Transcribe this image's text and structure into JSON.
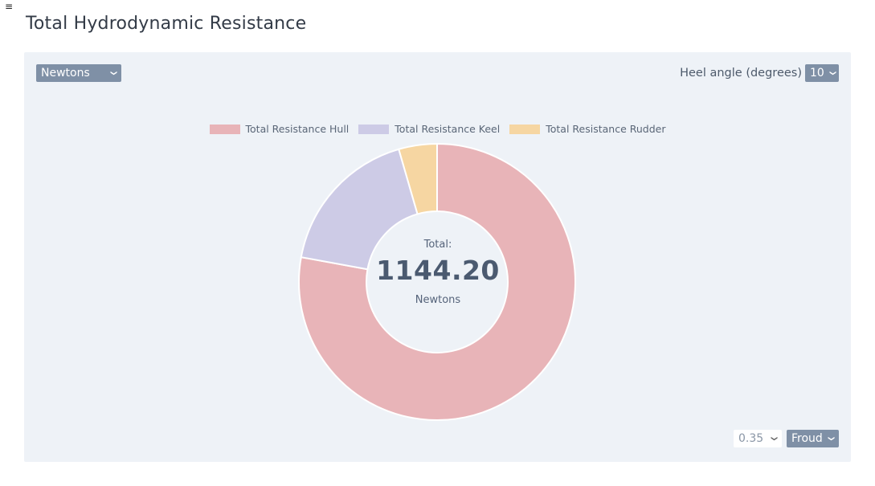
{
  "header": {
    "menu_icon": "hamburger-menu-icon",
    "title": "Total Hydrodynamic Resistance"
  },
  "controls": {
    "units_select": {
      "value": "Newtons",
      "icon": "chevron-down-icon"
    },
    "heel": {
      "label": "Heel angle (degrees)",
      "value": "10",
      "icon": "chevron-down-icon"
    },
    "froude_value_select": {
      "value": "0.35",
      "icon": "chevron-down-icon"
    },
    "froude_select": {
      "value": "Froud",
      "icon": "chevron-down-icon"
    }
  },
  "center": {
    "caption": "Total:",
    "value": "1144.20",
    "unit": "Newtons"
  },
  "colors": {
    "select_bg": "#7f90a6",
    "panel_bg": "#eef2f7",
    "hull": "#e8b4b8",
    "keel": "#cdcbe6",
    "rudder": "#f6d6a2"
  },
  "chart_data": {
    "type": "pie",
    "variant": "doughnut",
    "categories": [
      "Total Resistance Hull",
      "Total Resistance Keel",
      "Total Resistance Rudder"
    ],
    "values": [
      891.0,
      202.0,
      51.2
    ],
    "total": 1144.2,
    "unit": "Newtons",
    "legend": "top-center",
    "series": [
      {
        "name": "Total Resistance Hull",
        "value": 891.0,
        "color": "#e8b4b8"
      },
      {
        "name": "Total Resistance Keel",
        "value": 202.0,
        "color": "#cdcbe6"
      },
      {
        "name": "Total Resistance Rudder",
        "value": 51.2,
        "color": "#f6d6a2"
      }
    ]
  }
}
